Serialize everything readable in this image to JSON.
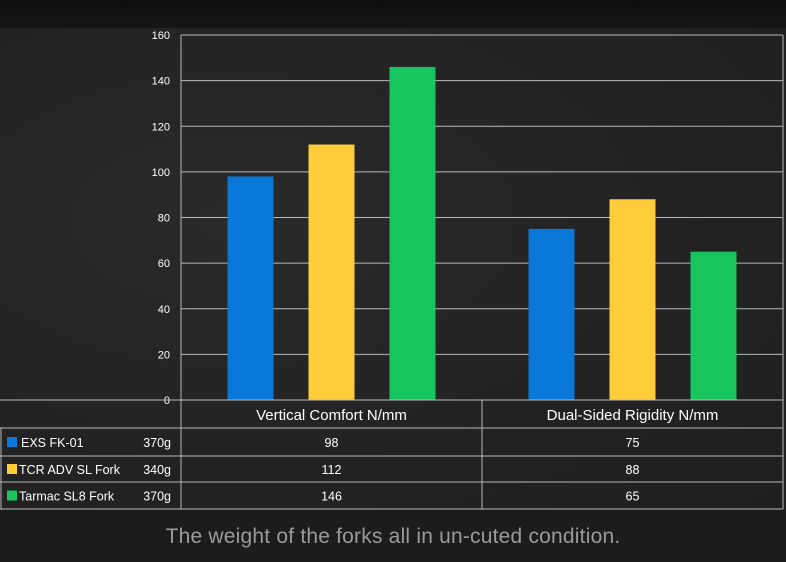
{
  "chart_data": {
    "type": "bar",
    "categories": [
      "Vertical Comfort N/mm",
      "Dual-Sided Rigidity N/mm"
    ],
    "series": [
      {
        "name": "EXS FK-01",
        "weight": "370g",
        "color": "#0a78d8",
        "values": [
          98,
          75
        ],
        "labels": [
          "98",
          "75"
        ]
      },
      {
        "name": "TCR ADV SL Fork",
        "weight": "340g",
        "color": "#ffcd3a",
        "values": [
          112,
          88
        ],
        "labels": [
          "112",
          "88"
        ]
      },
      {
        "name": "Tarmac SL8 Fork",
        "weight": "370g",
        "color": "#18c45c",
        "values": [
          146,
          65
        ],
        "labels": [
          "146",
          "65"
        ]
      }
    ],
    "ylim": [
      0,
      160
    ],
    "yticks": [
      "0",
      "20",
      "40",
      "60",
      "80",
      "100",
      "120",
      "140",
      "160"
    ],
    "grid": true,
    "legend": "data-table-left"
  },
  "caption": "The weight of the forks all in un-cuted condition.",
  "colors": {
    "background": "#232323",
    "grid": "#b8b8b8",
    "text": "#ffffff",
    "caption": "#9a9a9a"
  }
}
